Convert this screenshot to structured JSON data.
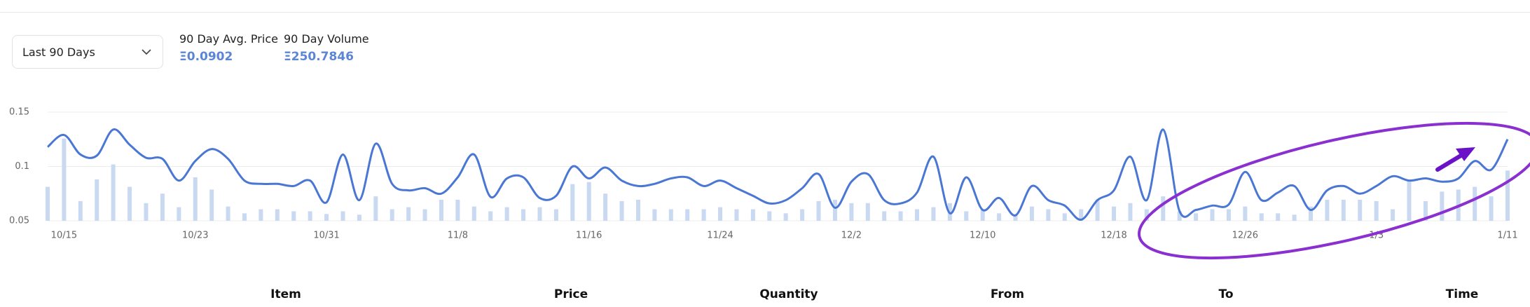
{
  "controls": {
    "period": "Last 90 Days"
  },
  "stats": [
    {
      "label": "90 Day Avg. Price",
      "value": "Ξ0.0902"
    },
    {
      "label": "90 Day Volume",
      "value": "Ξ250.7846"
    }
  ],
  "chart_data": {
    "type": "line",
    "categories": [
      null,
      "10/15",
      null,
      null,
      null,
      null,
      null,
      null,
      null,
      "10/23",
      null,
      null,
      null,
      null,
      null,
      null,
      null,
      "10/31",
      null,
      null,
      null,
      null,
      null,
      null,
      null,
      "11/8",
      null,
      null,
      null,
      null,
      null,
      null,
      null,
      "11/16",
      null,
      null,
      null,
      null,
      null,
      null,
      null,
      "11/24",
      null,
      null,
      null,
      null,
      null,
      null,
      null,
      "12/2",
      null,
      null,
      null,
      null,
      null,
      null,
      null,
      "12/10",
      null,
      null,
      null,
      null,
      null,
      null,
      null,
      "12/18",
      null,
      null,
      null,
      null,
      null,
      null,
      null,
      "12/26",
      null,
      null,
      null,
      null,
      null,
      null,
      null,
      "1/3",
      null,
      null,
      null,
      null,
      null,
      null,
      null,
      "1/11"
    ],
    "series": [
      {
        "type": "bar",
        "axis": "y2",
        "color": "#c9d9f2",
        "values": [
          5.0,
          12.1,
          2.9,
          6.1,
          8.3,
          5.0,
          2.6,
          4.0,
          2.0,
          6.4,
          4.6,
          2.1,
          1.1,
          1.7,
          1.7,
          1.4,
          1.4,
          1.0,
          1.4,
          0.9,
          3.6,
          1.7,
          2.0,
          1.7,
          3.1,
          3.1,
          2.1,
          1.4,
          2.0,
          1.7,
          2.0,
          1.7,
          5.4,
          5.7,
          4.0,
          2.9,
          3.1,
          1.7,
          1.7,
          1.7,
          1.7,
          2.0,
          1.7,
          1.7,
          1.4,
          1.1,
          1.7,
          2.9,
          3.1,
          2.6,
          2.6,
          1.4,
          1.4,
          1.7,
          2.0,
          2.6,
          1.4,
          1.7,
          1.1,
          0.9,
          2.1,
          1.7,
          1.1,
          1.7,
          3.1,
          2.1,
          2.6,
          1.7,
          3.6,
          1.4,
          1.1,
          1.7,
          1.7,
          2.1,
          1.1,
          1.1,
          0.9,
          2.1,
          3.1,
          3.1,
          3.1,
          2.9,
          1.7,
          6.0,
          2.9,
          4.3,
          4.6,
          5.0,
          3.6,
          7.4
        ]
      },
      {
        "type": "line",
        "color": "#4a77d4",
        "values": [
          0.118,
          0.129,
          0.111,
          0.11,
          0.134,
          0.12,
          0.108,
          0.107,
          0.087,
          0.105,
          0.116,
          0.107,
          0.087,
          0.084,
          0.084,
          0.082,
          0.087,
          0.067,
          0.111,
          0.069,
          0.121,
          0.084,
          0.078,
          0.08,
          0.075,
          0.09,
          0.111,
          0.072,
          0.089,
          0.09,
          0.071,
          0.073,
          0.1,
          0.089,
          0.099,
          0.087,
          0.082,
          0.084,
          0.089,
          0.09,
          0.082,
          0.087,
          0.08,
          0.073,
          0.066,
          0.069,
          0.08,
          0.093,
          0.062,
          0.086,
          0.093,
          0.069,
          0.066,
          0.076,
          0.109,
          0.057,
          0.09,
          0.06,
          0.071,
          0.055,
          0.082,
          0.069,
          0.064,
          0.051,
          0.069,
          0.078,
          0.109,
          0.069,
          0.134,
          0.059,
          0.06,
          0.064,
          0.065,
          0.095,
          0.069,
          0.076,
          0.082,
          0.06,
          0.078,
          0.082,
          0.075,
          0.082,
          0.091,
          0.087,
          0.089,
          0.086,
          0.089,
          0.105,
          0.097,
          0.125
        ]
      }
    ],
    "ylim": [
      0.05,
      0.15
    ],
    "yticks": [
      0.05,
      0.1,
      0.15
    ],
    "y2lim": [
      0,
      16
    ],
    "grid": true
  },
  "table": {
    "headers": [
      "Item",
      "Price",
      "Quantity",
      "From",
      "To",
      "Time"
    ]
  }
}
